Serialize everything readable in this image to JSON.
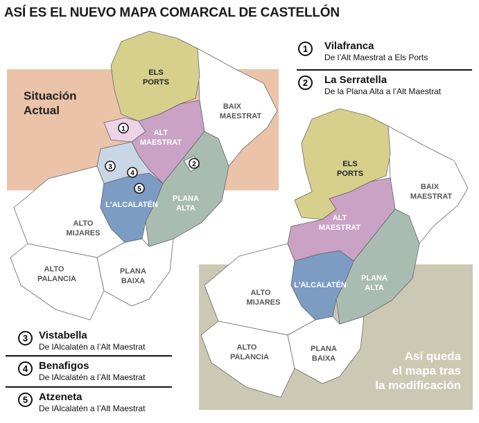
{
  "title": "ASÍ ES EL NUEVO MAPA COMARCAL DE CASTELLÓN",
  "current_label": [
    "Situación",
    "Actual"
  ],
  "result_label": [
    "Así queda",
    "el mapa tras",
    "la modificación"
  ],
  "comarcas": {
    "els_ports": [
      "ELS",
      "PORTS"
    ],
    "alt_maestrat": [
      "ALT",
      "MAESTRAT"
    ],
    "baix_maestrat": [
      "BAIX",
      "MAESTRAT"
    ],
    "plana_alta": [
      "PLANA",
      "ALTA"
    ],
    "alcalaten": "L'ALCALATÉN",
    "alto_mijares": [
      "ALTO",
      "MIJARES"
    ],
    "alto_palancia": [
      "ALTO",
      "PALANCIA"
    ],
    "plana_baixa": [
      "PLANA",
      "BAIXA"
    ]
  },
  "changes": [
    {
      "num": "1",
      "name": "Vilafranca",
      "desc": "De l’Alt Maestrat a Els Ports"
    },
    {
      "num": "2",
      "name": "La Serratella",
      "desc": "De la Plana Alta a l’Alt Maestrat"
    },
    {
      "num": "3",
      "name": "Vistabella",
      "desc": "De lAlcalatén a l’Alt Maestrat"
    },
    {
      "num": "4",
      "name": "Benafigos",
      "desc": "De lAlcalatén a l’Alt Maestrat"
    },
    {
      "num": "5",
      "name": "Atzeneta",
      "desc": "De lAlcalatén a l’Alt Maestrat"
    }
  ],
  "colors": {
    "els_ports": "#d7d08c",
    "alt_maestrat": "#c9a2c6",
    "plana_alta": "#a9bcb2",
    "alcalaten": "#7d9cc3",
    "transferred_to_els_ports": "#ecd3e6",
    "transferred_from_alcalaten": "#c8d6e6",
    "current_bg": "#ebc3a9",
    "result_bg": "#cbc8b4"
  }
}
